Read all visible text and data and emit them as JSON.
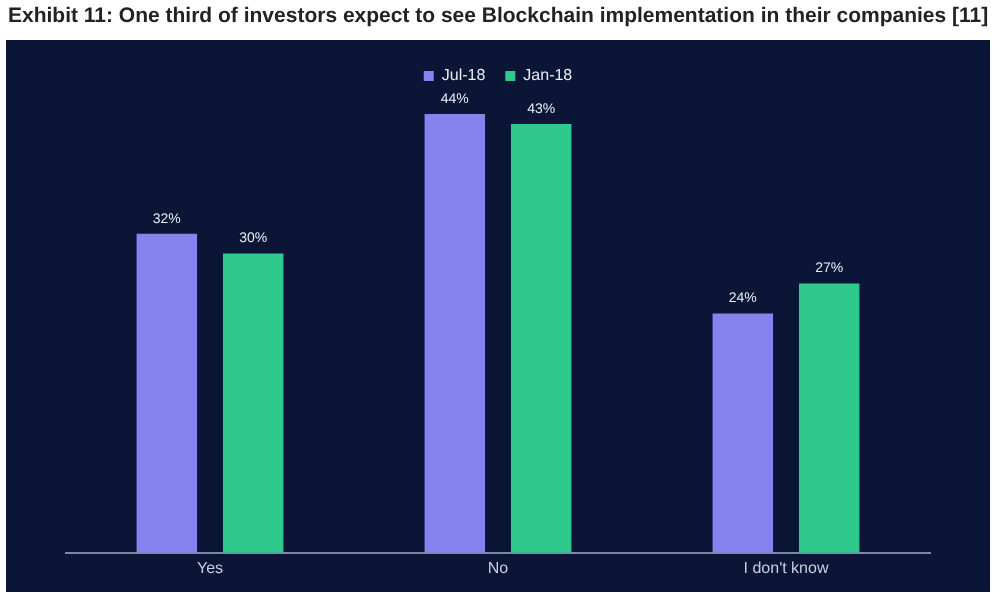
{
  "chart_data": {
    "type": "bar",
    "title": "Exhibit 11: One third of investors expect to see Blockchain implementation in their companies [11]",
    "categories": [
      "Yes",
      "No",
      "I don't know"
    ],
    "series": [
      {
        "name": "Jul-18",
        "color": "#8583ee",
        "values": [
          32,
          44,
          24
        ],
        "value_labels": [
          "32%",
          "44%",
          "24%"
        ]
      },
      {
        "name": "Jan-18",
        "color": "#2fc98e",
        "values": [
          30,
          43,
          27
        ],
        "value_labels": [
          "30%",
          "43%",
          "27%"
        ]
      }
    ],
    "legend": "top",
    "grid": false
  }
}
